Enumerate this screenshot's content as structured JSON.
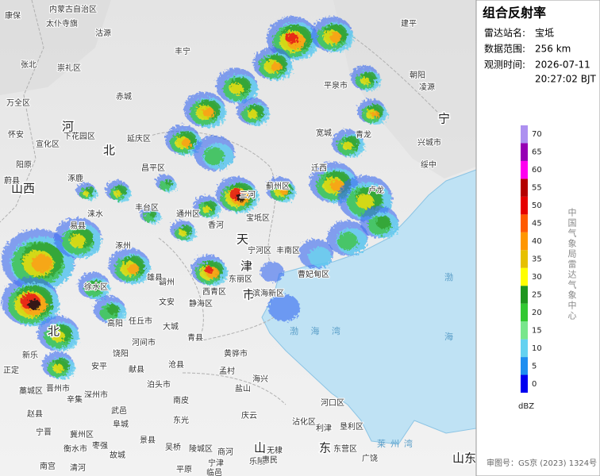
{
  "panel": {
    "title": "组合反射率",
    "info": [
      {
        "label": "雷达站名:",
        "value": "宝坻"
      },
      {
        "label": "数据范围:",
        "value": "256 km"
      },
      {
        "label": "观测时间:",
        "value": "2026-07-11"
      }
    ],
    "time_line2": "20:27:02 BJT"
  },
  "legend": {
    "ticks": [
      0,
      5,
      10,
      15,
      20,
      25,
      30,
      35,
      40,
      45,
      50,
      55,
      60,
      65,
      70
    ],
    "colors": [
      "#0000f0",
      "#1e8ef0",
      "#64d2f0",
      "#78e68c",
      "#32c832",
      "#1e961e",
      "#ffff00",
      "#e6c000",
      "#ff9600",
      "#ff5a00",
      "#e60000",
      "#b40000",
      "#ff00f0",
      "#9600b4",
      "#ad90f0"
    ],
    "unit": "dBZ",
    "source": "中国气象局雷达气象中心"
  },
  "footer": "审图号：GS京 (2023) 1324号",
  "map": {
    "regions": [
      "河",
      "北",
      "山西",
      "天",
      "津",
      "市",
      "宁",
      "山",
      "东",
      "山东",
      "北"
    ],
    "seas": [
      "渤 海 湾",
      "渤",
      "海",
      "莱州湾"
    ],
    "places": [
      "康保",
      "内蒙古自治区",
      "太仆寺旗",
      "沽源",
      "丰宁",
      "张北",
      "崇礼区",
      "赤城",
      "万全区",
      "怀安",
      "宣化区",
      "下花园区",
      "延庆区",
      "阳原",
      "涿鹿",
      "昌平区",
      "蔚县",
      "丰台区",
      "易县",
      "涞水",
      "涿州",
      "通州区",
      "香河",
      "三河",
      "宝坻区",
      "蓟州区",
      "宁河区",
      "丰南区",
      "曹妃甸区",
      "迁西",
      "卢龙",
      "宽城",
      "平泉市",
      "建平",
      "青龙",
      "滨海新区",
      "东丽区",
      "西青区",
      "静海区",
      "文安",
      "霸州",
      "雄县",
      "徐水区",
      "高阳",
      "任丘市",
      "大城",
      "河间市",
      "青县",
      "黄骅市",
      "安平",
      "饶阳",
      "献县",
      "泊头市",
      "沧县",
      "孟村",
      "海兴",
      "盐山",
      "南皮",
      "东光",
      "新乐",
      "正定",
      "藁城区",
      "晋州市",
      "辛集",
      "深州市",
      "赵县",
      "宁晋",
      "冀州区",
      "武邑",
      "阜城",
      "景县",
      "枣强",
      "衡水市",
      "南宫",
      "清河",
      "故城",
      "吴桥",
      "宁津",
      "庆云",
      "乐陵",
      "无棣",
      "惠民",
      "沾化区",
      "利津",
      "河口区",
      "垦利区",
      "东营区",
      "广饶",
      "商河",
      "临邑",
      "平原",
      "陵城区",
      "凌源",
      "朝阳",
      "兴城市",
      "绥中"
    ]
  }
}
